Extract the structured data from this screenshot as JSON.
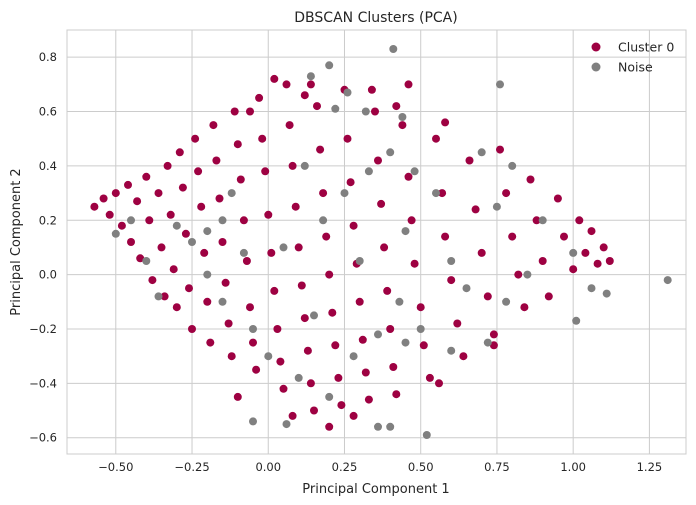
{
  "chart_data": {
    "type": "scatter",
    "title": "DBSCAN Clusters (PCA)",
    "xlabel": "Principal Component 1",
    "ylabel": "Principal Component 2",
    "xlim": [
      -0.66,
      1.37
    ],
    "ylim": [
      -0.66,
      0.9
    ],
    "xticks": [
      -0.5,
      -0.25,
      0.0,
      0.25,
      0.5,
      0.75,
      1.0,
      1.25
    ],
    "xtick_labels": [
      "−0.50",
      "−0.25",
      "0.00",
      "0.25",
      "0.50",
      "0.75",
      "1.00",
      "1.25"
    ],
    "yticks": [
      -0.6,
      -0.4,
      -0.2,
      0.0,
      0.2,
      0.4,
      0.6,
      0.8
    ],
    "ytick_labels": [
      "−0.6",
      "−0.4",
      "−0.2",
      "0.0",
      "0.2",
      "0.4",
      "0.6",
      "0.8"
    ],
    "grid": true,
    "legend_position": "top-right",
    "colors": {
      "cluster": "#9e0142",
      "noise": "#808080",
      "grid": "#cccccc",
      "frame": "#cccccc"
    },
    "series": [
      {
        "name": "Cluster 0",
        "color": "#9e0142",
        "points": [
          [
            -0.57,
            0.25
          ],
          [
            -0.54,
            0.28
          ],
          [
            -0.52,
            0.22
          ],
          [
            -0.5,
            0.3
          ],
          [
            -0.48,
            0.18
          ],
          [
            -0.46,
            0.33
          ],
          [
            -0.45,
            0.12
          ],
          [
            -0.43,
            0.27
          ],
          [
            -0.42,
            0.06
          ],
          [
            -0.4,
            0.36
          ],
          [
            -0.39,
            0.2
          ],
          [
            -0.38,
            -0.02
          ],
          [
            -0.36,
            0.3
          ],
          [
            -0.35,
            0.1
          ],
          [
            -0.34,
            -0.08
          ],
          [
            -0.33,
            0.4
          ],
          [
            -0.32,
            0.22
          ],
          [
            -0.31,
            0.02
          ],
          [
            -0.3,
            -0.12
          ],
          [
            -0.29,
            0.45
          ],
          [
            -0.28,
            0.32
          ],
          [
            -0.27,
            0.15
          ],
          [
            -0.26,
            -0.05
          ],
          [
            -0.25,
            -0.2
          ],
          [
            -0.24,
            0.5
          ],
          [
            -0.23,
            0.38
          ],
          [
            -0.22,
            0.25
          ],
          [
            -0.21,
            0.08
          ],
          [
            -0.2,
            -0.1
          ],
          [
            -0.19,
            -0.25
          ],
          [
            -0.18,
            0.55
          ],
          [
            -0.17,
            0.42
          ],
          [
            -0.16,
            0.28
          ],
          [
            -0.15,
            0.12
          ],
          [
            -0.14,
            -0.03
          ],
          [
            -0.13,
            -0.18
          ],
          [
            -0.12,
            -0.3
          ],
          [
            -0.11,
            0.6
          ],
          [
            -0.1,
            0.48
          ],
          [
            -0.09,
            0.35
          ],
          [
            -0.08,
            0.2
          ],
          [
            -0.07,
            0.05
          ],
          [
            -0.06,
            -0.12
          ],
          [
            -0.05,
            -0.25
          ],
          [
            -0.04,
            -0.35
          ],
          [
            -0.03,
            0.65
          ],
          [
            -0.02,
            0.5
          ],
          [
            -0.01,
            0.38
          ],
          [
            0.0,
            0.22
          ],
          [
            0.01,
            0.08
          ],
          [
            0.02,
            -0.06
          ],
          [
            0.03,
            -0.2
          ],
          [
            0.04,
            -0.32
          ],
          [
            0.05,
            -0.42
          ],
          [
            0.06,
            0.7
          ],
          [
            0.07,
            0.55
          ],
          [
            0.08,
            0.4
          ],
          [
            0.09,
            0.25
          ],
          [
            0.1,
            0.1
          ],
          [
            0.11,
            -0.04
          ],
          [
            0.12,
            -0.16
          ],
          [
            0.13,
            -0.28
          ],
          [
            0.14,
            -0.4
          ],
          [
            0.15,
            -0.5
          ],
          [
            0.16,
            0.62
          ],
          [
            0.17,
            0.46
          ],
          [
            0.18,
            0.3
          ],
          [
            0.19,
            0.14
          ],
          [
            0.2,
            0.0
          ],
          [
            0.21,
            -0.14
          ],
          [
            0.22,
            -0.26
          ],
          [
            0.23,
            -0.38
          ],
          [
            0.24,
            -0.48
          ],
          [
            0.25,
            0.68
          ],
          [
            0.26,
            0.5
          ],
          [
            0.27,
            0.34
          ],
          [
            0.28,
            0.18
          ],
          [
            0.29,
            0.04
          ],
          [
            0.3,
            -0.1
          ],
          [
            0.31,
            -0.24
          ],
          [
            0.32,
            -0.36
          ],
          [
            0.33,
            -0.46
          ],
          [
            0.35,
            0.6
          ],
          [
            0.36,
            0.42
          ],
          [
            0.37,
            0.26
          ],
          [
            0.38,
            0.1
          ],
          [
            0.39,
            -0.06
          ],
          [
            0.4,
            -0.2
          ],
          [
            0.41,
            -0.34
          ],
          [
            0.42,
            -0.44
          ],
          [
            0.44,
            0.55
          ],
          [
            0.46,
            0.36
          ],
          [
            0.47,
            0.2
          ],
          [
            0.48,
            0.04
          ],
          [
            0.5,
            -0.12
          ],
          [
            0.51,
            -0.26
          ],
          [
            0.53,
            -0.38
          ],
          [
            0.55,
            0.5
          ],
          [
            0.57,
            0.3
          ],
          [
            0.58,
            0.14
          ],
          [
            0.6,
            -0.02
          ],
          [
            0.62,
            -0.18
          ],
          [
            0.64,
            -0.3
          ],
          [
            0.66,
            0.42
          ],
          [
            0.68,
            0.24
          ],
          [
            0.7,
            0.08
          ],
          [
            0.72,
            -0.08
          ],
          [
            0.74,
            -0.22
          ],
          [
            0.76,
            0.46
          ],
          [
            0.78,
            0.3
          ],
          [
            0.8,
            0.14
          ],
          [
            0.82,
            0.0
          ],
          [
            0.84,
            -0.12
          ],
          [
            0.86,
            0.35
          ],
          [
            0.88,
            0.2
          ],
          [
            0.9,
            0.05
          ],
          [
            0.92,
            -0.08
          ],
          [
            0.95,
            0.28
          ],
          [
            0.97,
            0.14
          ],
          [
            1.0,
            0.02
          ],
          [
            1.02,
            0.2
          ],
          [
            1.04,
            0.08
          ],
          [
            1.06,
            0.16
          ],
          [
            1.08,
            0.04
          ],
          [
            1.1,
            0.1
          ],
          [
            1.12,
            0.05
          ],
          [
            0.02,
            0.72
          ],
          [
            0.14,
            0.7
          ],
          [
            0.34,
            0.68
          ],
          [
            0.46,
            0.7
          ],
          [
            0.2,
            -0.56
          ],
          [
            0.08,
            -0.52
          ],
          [
            0.28,
            -0.52
          ],
          [
            -0.1,
            -0.45
          ],
          [
            0.56,
            -0.4
          ],
          [
            0.74,
            -0.26
          ],
          [
            0.58,
            0.56
          ],
          [
            0.42,
            0.62
          ],
          [
            0.12,
            0.66
          ],
          [
            -0.06,
            0.6
          ]
        ]
      },
      {
        "name": "Noise",
        "color": "#808080",
        "points": [
          [
            0.41,
            0.83
          ],
          [
            0.76,
            0.7
          ],
          [
            1.31,
            -0.02
          ],
          [
            0.52,
            -0.59
          ],
          [
            0.2,
            0.77
          ],
          [
            0.14,
            0.73
          ],
          [
            -0.5,
            0.15
          ],
          [
            -0.45,
            0.2
          ],
          [
            -0.4,
            0.05
          ],
          [
            -0.36,
            -0.08
          ],
          [
            -0.3,
            0.18
          ],
          [
            -0.25,
            0.12
          ],
          [
            -0.2,
            0.0
          ],
          [
            -0.15,
            -0.1
          ],
          [
            -0.12,
            0.3
          ],
          [
            -0.08,
            0.08
          ],
          [
            -0.05,
            -0.2
          ],
          [
            0.0,
            -0.3
          ],
          [
            0.05,
            0.1
          ],
          [
            0.1,
            -0.38
          ],
          [
            0.12,
            0.4
          ],
          [
            0.15,
            -0.15
          ],
          [
            0.18,
            0.2
          ],
          [
            0.2,
            -0.45
          ],
          [
            0.25,
            0.3
          ],
          [
            0.28,
            -0.3
          ],
          [
            0.3,
            0.05
          ],
          [
            0.33,
            0.38
          ],
          [
            0.36,
            -0.22
          ],
          [
            0.4,
            0.45
          ],
          [
            0.43,
            -0.1
          ],
          [
            0.45,
            0.16
          ],
          [
            0.48,
            0.38
          ],
          [
            0.5,
            -0.2
          ],
          [
            0.55,
            0.3
          ],
          [
            0.6,
            0.05
          ],
          [
            0.65,
            -0.05
          ],
          [
            0.7,
            0.45
          ],
          [
            0.75,
            0.25
          ],
          [
            0.78,
            -0.1
          ],
          [
            0.8,
            0.4
          ],
          [
            0.85,
            0.0
          ],
          [
            0.9,
            0.2
          ],
          [
            1.0,
            0.08
          ],
          [
            1.01,
            -0.17
          ],
          [
            1.06,
            -0.05
          ],
          [
            1.11,
            -0.07
          ],
          [
            0.72,
            -0.25
          ],
          [
            0.6,
            -0.28
          ],
          [
            0.45,
            -0.25
          ],
          [
            0.36,
            -0.56
          ],
          [
            0.4,
            -0.56
          ],
          [
            -0.05,
            -0.54
          ],
          [
            0.06,
            -0.55
          ],
          [
            0.32,
            0.6
          ],
          [
            0.26,
            0.67
          ],
          [
            0.22,
            0.61
          ],
          [
            0.44,
            0.58
          ],
          [
            -0.15,
            0.2
          ],
          [
            -0.2,
            0.16
          ]
        ]
      }
    ]
  }
}
